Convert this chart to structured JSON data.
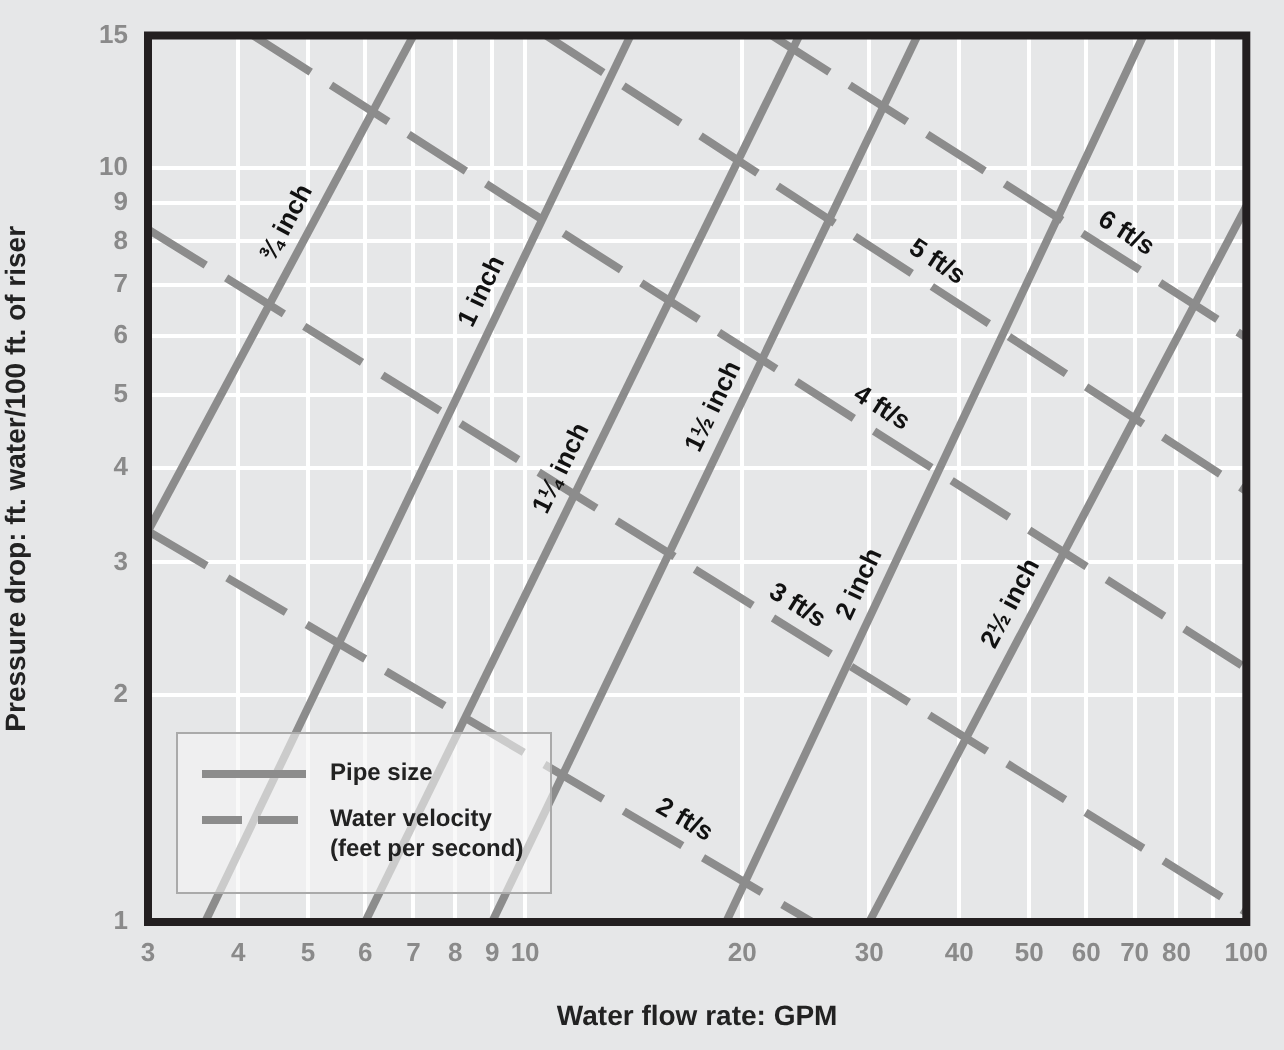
{
  "chart_data": {
    "type": "line",
    "xlabel": "Water flow rate: GPM",
    "ylabel": "Pressure drop: ft. water/100 ft. of riser",
    "log": "xy",
    "grid": true,
    "marker": "none",
    "legend": "bottom left",
    "xlim": [
      3,
      100
    ],
    "xticks": [
      3,
      4,
      5,
      6,
      7,
      8,
      9,
      10,
      20,
      30,
      40,
      50,
      60,
      70,
      80,
      {
        "value": 90,
        "label": null
      },
      100
    ],
    "ylim": [
      1,
      15
    ],
    "yticks": [
      1,
      2,
      3,
      4,
      5,
      6,
      7,
      8,
      9,
      10,
      15
    ],
    "annotations": [
      "Pipe size",
      "Water velocity\n(feet per second)"
    ],
    "series": [
      {
        "name": "¾ inch",
        "color": "#8c8c8c",
        "line_style": "solid",
        "x": [
          3,
          7.0
        ],
        "values": [
          3.3,
          15
        ]
      },
      {
        "name": "1 inch",
        "color": "#8c8c8c",
        "line_style": "solid",
        "x": [
          3.6,
          14.0
        ],
        "values": [
          1,
          15
        ]
      },
      {
        "name": "1¼ inch",
        "color": "#8c8c8c",
        "line_style": "solid",
        "x": [
          6.0,
          24
        ],
        "values": [
          1,
          15
        ]
      },
      {
        "name": "1½ inch",
        "color": "#8c8c8c",
        "line_style": "solid",
        "x": [
          9.0,
          35
        ],
        "values": [
          1,
          15
        ]
      },
      {
        "name": "2 inch",
        "color": "#8c8c8c",
        "line_style": "solid",
        "x": [
          19,
          72
        ],
        "values": [
          1,
          15
        ]
      },
      {
        "name": "2½ inch",
        "color": "#8c8c8c",
        "line_style": "solid",
        "x": [
          30,
          100
        ],
        "values": [
          1,
          8.9
        ]
      },
      {
        "name": "2 ft/s",
        "color": "#8c8c8c",
        "line_style": "dashed",
        "x": [
          3,
          25
        ],
        "values": [
          3.3,
          1
        ]
      },
      {
        "name": "3 ft/s",
        "color": "#8c8c8c",
        "line_style": "dashed",
        "x": [
          3,
          100
        ],
        "values": [
          8.3,
          1.03
        ]
      },
      {
        "name": "4 ft/s",
        "color": "#8c8c8c",
        "line_style": "dashed",
        "x": [
          4.2,
          100
        ],
        "values": [
          15,
          2.17
        ]
      },
      {
        "name": "5 ft/s",
        "color": "#8c8c8c",
        "line_style": "dashed",
        "x": [
          10.7,
          100
        ],
        "values": [
          15,
          3.73
        ]
      },
      {
        "name": "6 ft/s",
        "color": "#8c8c8c",
        "line_style": "dashed",
        "x": [
          22,
          100
        ],
        "values": [
          15,
          5.96
        ]
      }
    ]
  }
}
